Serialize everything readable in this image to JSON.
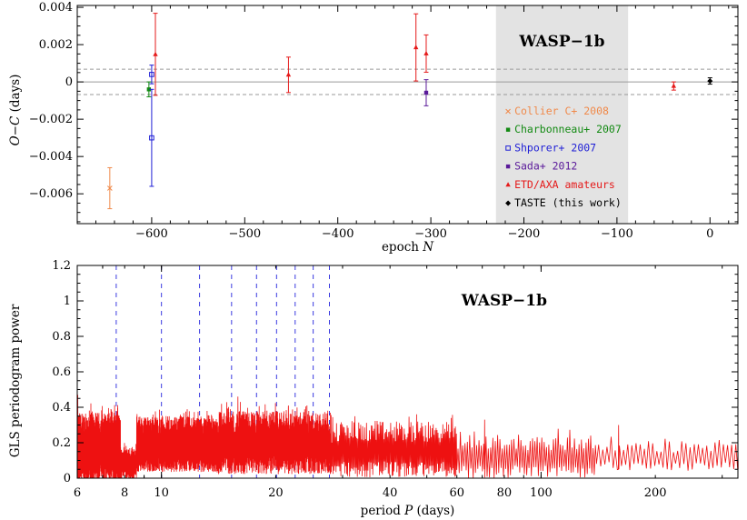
{
  "chart_data": [
    {
      "type": "scatter",
      "title": "",
      "annotation": "WASP−1b",
      "xlabel": "epoch N",
      "ylabel": "O−C (days)",
      "xlim": [
        -680,
        30
      ],
      "ylim": [
        -0.0076,
        0.0041
      ],
      "xticks": [
        -600,
        -500,
        -400,
        -300,
        -200,
        -100,
        0
      ],
      "xtick_labels": [
        "−600",
        "−500",
        "−400",
        "−300",
        "−200",
        "−100",
        "0"
      ],
      "yticks": [
        -0.006,
        -0.004,
        -0.002,
        0,
        0.002,
        0.004
      ],
      "ytick_labels": [
        "−0.006",
        "−0.004",
        "−0.002",
        "0",
        "0.002",
        "0.004"
      ],
      "shaded_region": {
        "x": [
          -230,
          -88
        ]
      },
      "reference_lines": {
        "zero": 0,
        "dashed": [
          0.00068,
          -0.00068
        ]
      },
      "legend_position": "lower-center",
      "colors": {
        "collier": "#f08a4b",
        "charbonneau": "#138a13",
        "shporer": "#1f1fd6",
        "sada": "#5a1a9a",
        "etd": "#e51a1a",
        "taste": "#000000",
        "shade": "#e3e3e3",
        "zero_line": "#9a9a9a",
        "dashed_line": "#9a9a9a"
      },
      "series": [
        {
          "name": "Collier C+ 2008",
          "key": "collier",
          "marker": "x",
          "points": [
            {
              "x": -645,
              "y": -0.0057,
              "err": 0.0011
            }
          ]
        },
        {
          "name": "Charbonneau+ 2007",
          "key": "charbonneau",
          "marker": "filled-square",
          "points": [
            {
              "x": -603,
              "y": -0.0004,
              "err": 0.0004
            }
          ]
        },
        {
          "name": "Shporer+ 2007",
          "key": "shporer",
          "marker": "open-square",
          "points": [
            {
              "x": -600,
              "y": 0.0004,
              "err": 0.0005
            },
            {
              "x": -600,
              "y": -0.003,
              "err": 0.0026
            }
          ]
        },
        {
          "name": "Sada+ 2012",
          "key": "sada",
          "marker": "filled-square",
          "points": [
            {
              "x": -305,
              "y": -0.00058,
              "err": 0.0007
            }
          ]
        },
        {
          "name": "ETD/AXA amateurs",
          "key": "etd",
          "marker": "triangle",
          "points": [
            {
              "x": -596,
              "y": 0.00148,
              "err": 0.0022
            },
            {
              "x": -453,
              "y": 0.00038,
              "err": 0.00095
            },
            {
              "x": -316,
              "y": 0.00185,
              "err": 0.0018
            },
            {
              "x": -305,
              "y": 0.00152,
              "err": 0.001
            },
            {
              "x": -39,
              "y": -0.00022,
              "err": 0.00022
            }
          ]
        },
        {
          "name": "TASTE (this work)",
          "key": "taste",
          "marker": "diamond",
          "points": [
            {
              "x": 0,
              "y": 5e-05,
              "err": 0.00017
            }
          ]
        }
      ]
    },
    {
      "type": "line",
      "title": "",
      "annotation": "WASP−1b",
      "xlabel": "period P (days)",
      "ylabel": "GLS periodogram power",
      "xscale": "log",
      "xlim": [
        6,
        330
      ],
      "ylim": [
        0,
        1.2
      ],
      "xticks": [
        6,
        8,
        10,
        20,
        40,
        60,
        80,
        100,
        200
      ],
      "xtick_labels": [
        "6",
        "8",
        "10",
        "20",
        "40",
        "60",
        "80",
        "100",
        "200"
      ],
      "yticks": [
        0,
        0.2,
        0.4,
        0.6,
        0.8,
        1.0,
        1.2
      ],
      "ytick_labels": [
        "0",
        "0.2",
        "0.4",
        "0.6",
        "0.8",
        "1",
        "1.2"
      ],
      "dashed_period_lines": [
        7.6,
        10.0,
        12.6,
        15.3,
        17.8,
        20.1,
        22.5,
        25.1,
        27.7
      ],
      "colors": {
        "periodogram": "#ee1111",
        "period_lines": "#3a3ae0"
      },
      "series": [
        {
          "segments": [
            {
              "p": [
                6,
                7.8
              ],
              "base": 0.18,
              "amp": 0.19,
              "n": 230
            },
            {
              "p": [
                7.8,
                8.6
              ],
              "base": 0.09,
              "amp": 0.09,
              "n": 70
            },
            {
              "p": [
                8.6,
                14
              ],
              "base": 0.2,
              "amp": 0.15,
              "n": 420
            },
            {
              "p": [
                14,
                28
              ],
              "base": 0.21,
              "amp": 0.17,
              "n": 380
            },
            {
              "p": [
                28,
                60
              ],
              "base": 0.17,
              "amp": 0.15,
              "n": 130
            },
            {
              "p": [
                60,
                140
              ],
              "base": 0.13,
              "amp": 0.12,
              "n": 60
            },
            {
              "p": [
                140,
                330
              ],
              "base": 0.13,
              "amp": 0.08,
              "n": 34
            }
          ],
          "spikes": [
            {
              "p": 6.02,
              "v": 0.47
            },
            {
              "p": 15.9,
              "v": 0.46
            },
            {
              "p": 21.6,
              "v": 0.41
            },
            {
              "p": 47,
              "v": 0.36
            },
            {
              "p": 58,
              "v": 0.34
            },
            {
              "p": 71,
              "v": 0.33
            },
            {
              "p": 160,
              "v": 0.3
            },
            {
              "p": 330,
              "v": 0.2
            }
          ]
        }
      ]
    }
  ]
}
